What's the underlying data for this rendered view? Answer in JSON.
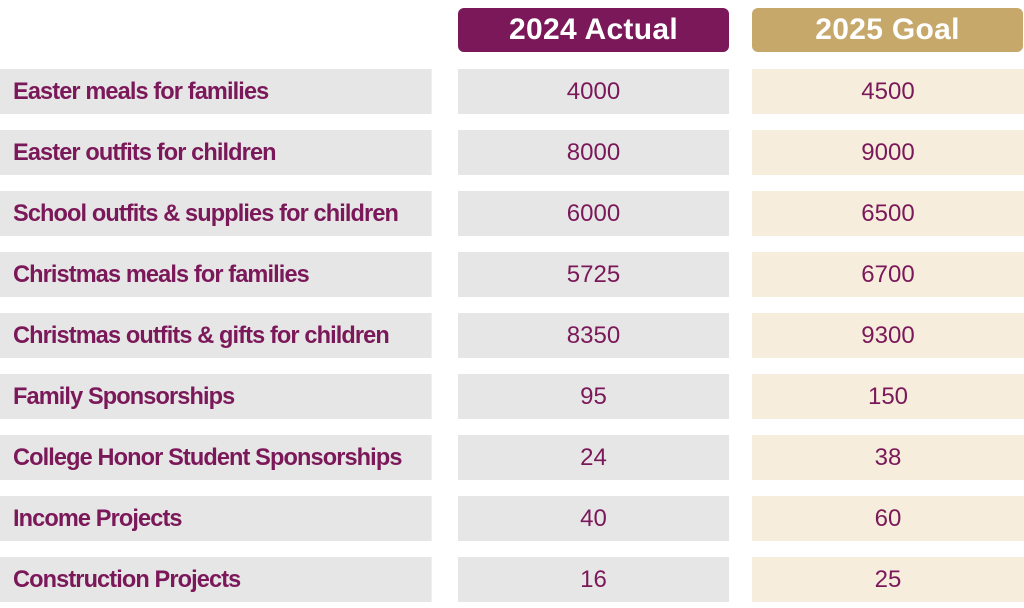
{
  "colors": {
    "brand_purple": "#7b1859",
    "brand_gold": "#c6a86b",
    "row_gray": "#e6e6e6",
    "row_cream": "#f6eddc"
  },
  "headers": {
    "actual": "2024 Actual",
    "goal": "2025 Goal"
  },
  "rows": [
    {
      "label": "Easter meals for families",
      "actual": "4000",
      "goal": "4500"
    },
    {
      "label": "Easter outfits for children",
      "actual": "8000",
      "goal": "9000"
    },
    {
      "label": "School outfits & supplies for children",
      "actual": "6000",
      "goal": "6500"
    },
    {
      "label": "Christmas meals for families",
      "actual": "5725",
      "goal": "6700"
    },
    {
      "label": "Christmas outfits & gifts for children",
      "actual": "8350",
      "goal": "9300"
    },
    {
      "label": "Family Sponsorships",
      "actual": "95",
      "goal": "150"
    },
    {
      "label": "College Honor Student Sponsorships",
      "actual": "24",
      "goal": "38"
    },
    {
      "label": "Income Projects",
      "actual": "40",
      "goal": "60"
    },
    {
      "label": "Construction Projects",
      "actual": "16",
      "goal": "25"
    }
  ]
}
